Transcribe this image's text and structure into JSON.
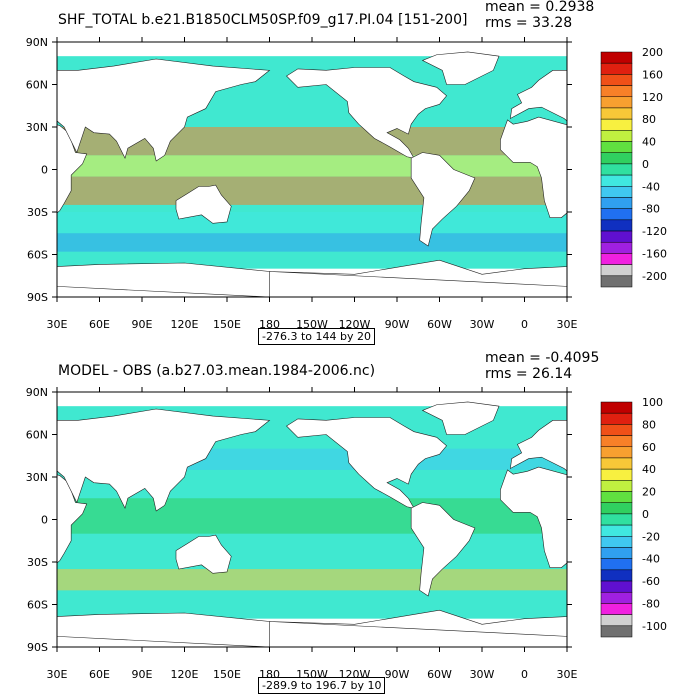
{
  "chart_data": [
    {
      "type": "heatmap",
      "title": "SHF_TOTAL b.e21.B1850CLM50SP.f09_g17.PI.04 [151-200]",
      "mean_text": "mean = 0.2938",
      "rms_text": "rms = 33.28",
      "range_text": "-276.3 to 144 by 20",
      "x_ticks": [
        "30E",
        "60E",
        "90E",
        "120E",
        "150E",
        "180",
        "150W",
        "120W",
        "90W",
        "60W",
        "30W",
        "0",
        "30E"
      ],
      "y_ticks": [
        "90N",
        "60N",
        "30N",
        "0",
        "30S",
        "60S",
        "90S"
      ],
      "colorbar_labels": [
        "200",
        "160",
        "120",
        "80",
        "40",
        "0",
        "-40",
        "-80",
        "-120",
        "-160",
        "-200"
      ],
      "colorbar_colors": [
        "#c00000",
        "#e02010",
        "#f05018",
        "#f88028",
        "#f8a030",
        "#f8c838",
        "#f8f040",
        "#c0f040",
        "#60e040",
        "#30d060",
        "#30e0a0",
        "#40e8e0",
        "#40c8f0",
        "#30a0f0",
        "#2070f0",
        "#1030c0",
        "#6010d0",
        "#a020e0",
        "#f020e0",
        "#d0d0d0",
        "#707070"
      ],
      "colors": {
        "ocean": "#40e8d0",
        "land": "#ffffff"
      }
    },
    {
      "type": "heatmap",
      "title": "MODEL - OBS (a.b27.03.mean.1984-2006.nc)",
      "mean_text": "mean = -0.4095",
      "rms_text": "rms = 26.14",
      "range_text": "-289.9 to 196.7 by 10",
      "x_ticks": [
        "30E",
        "60E",
        "90E",
        "120E",
        "150E",
        "180",
        "150W",
        "120W",
        "90W",
        "60W",
        "30W",
        "0",
        "30E"
      ],
      "y_ticks": [
        "90N",
        "60N",
        "30N",
        "0",
        "30S",
        "60S",
        "90S"
      ],
      "colorbar_labels": [
        "100",
        "80",
        "60",
        "40",
        "20",
        "0",
        "-20",
        "-40",
        "-60",
        "-80",
        "-100"
      ],
      "colorbar_colors": [
        "#c00000",
        "#e02010",
        "#f05018",
        "#f88028",
        "#f8a030",
        "#f8c838",
        "#f8f040",
        "#c0f040",
        "#60e040",
        "#30d060",
        "#30e0a0",
        "#40e8e0",
        "#40c8f0",
        "#30a0f0",
        "#2070f0",
        "#1030c0",
        "#6010d0",
        "#a020e0",
        "#f020e0",
        "#d0d0d0",
        "#707070"
      ],
      "colors": {
        "ocean": "#40e8d0",
        "land": "#ffffff"
      }
    }
  ]
}
